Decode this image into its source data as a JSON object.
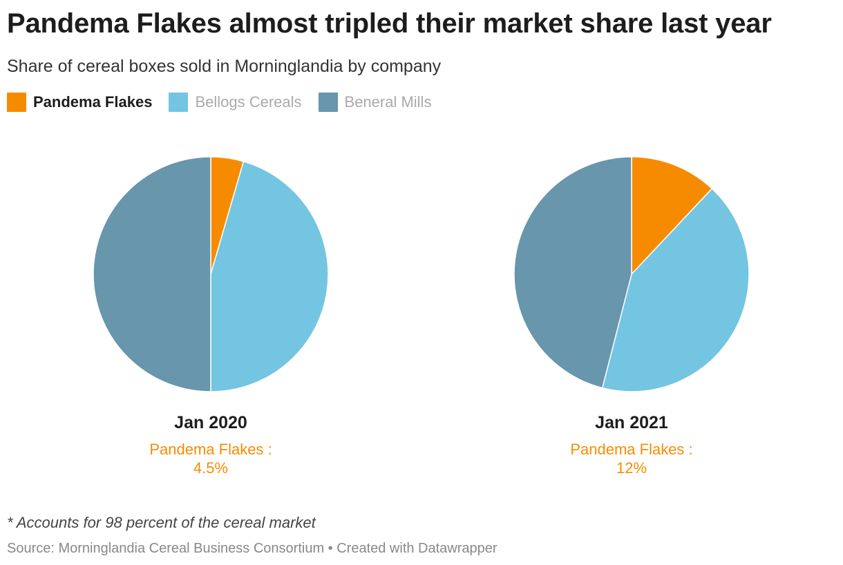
{
  "title": "Pandema Flakes almost tripled their market share last year",
  "subtitle": "Share of cereal boxes sold in Morninglandia by company",
  "legend": [
    {
      "label": "Pandema Flakes",
      "color": "#f78b00",
      "active": true
    },
    {
      "label": "Bellogs Cereals",
      "color": "#74c5e1",
      "active": false
    },
    {
      "label": "Beneral Mills",
      "color": "#6796ad",
      "active": false
    }
  ],
  "chart_data": [
    {
      "type": "pie",
      "label": "Jan 2020",
      "highlight": {
        "series": "Pandema Flakes :",
        "value": "4.5%"
      },
      "slices": [
        {
          "name": "Pandema Flakes",
          "value": 4.5,
          "color": "#f78b00"
        },
        {
          "name": "Bellogs Cereals",
          "value": 45.5,
          "color": "#74c5e1"
        },
        {
          "name": "Beneral Mills",
          "value": 50,
          "color": "#6796ad"
        }
      ]
    },
    {
      "type": "pie",
      "label": "Jan 2021",
      "highlight": {
        "series": "Pandema Flakes :",
        "value": "12%"
      },
      "slices": [
        {
          "name": "Pandema Flakes",
          "value": 12,
          "color": "#f78b00"
        },
        {
          "name": "Bellogs Cereals",
          "value": 42,
          "color": "#74c5e1"
        },
        {
          "name": "Beneral Mills",
          "value": 46,
          "color": "#6796ad"
        }
      ]
    }
  ],
  "note": "* Accounts for 98 percent of the cereal market",
  "source": "Source: Morninglandia Cereal Business Consortium • Created with Datawrapper"
}
